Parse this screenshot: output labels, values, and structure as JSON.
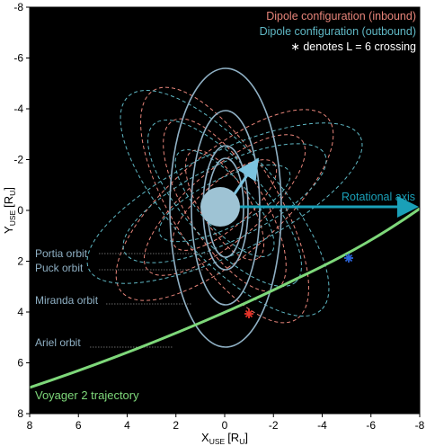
{
  "axes": {
    "x_label_main": "X",
    "x_label_sub": "USE",
    "x_label_unit": "[R",
    "x_label_unit_sub": "U",
    "x_label_close": "]",
    "y_label_main": "Y",
    "y_label_sub": "USE",
    "y_label_unit": "[R",
    "y_label_unit_sub": "U",
    "y_label_close": "]",
    "x_ticks": [
      "8",
      "6",
      "4",
      "2",
      "0",
      "-2",
      "-4",
      "-6",
      "-8"
    ],
    "y_ticks": [
      "-8",
      "-6",
      "-4",
      "-2",
      "0",
      "2",
      "4",
      "6",
      "8"
    ]
  },
  "legend": {
    "inbound": "Dipole configuration (inbound)",
    "outbound": "Dipole configuration (outbound)",
    "crossing": "∗ denotes L = 6 crossing"
  },
  "labels": {
    "rotational_axis": "Rotational axis",
    "portia": "Portia orbit",
    "puck": "Puck orbit",
    "miranda": "Miranda orbit",
    "ariel": "Ariel orbit",
    "voyager": "Voyager 2 trajectory"
  },
  "colors": {
    "background": "#000000",
    "inbound": "#e8857a",
    "outbound": "#5fb7c4",
    "orbit": "#8fb0c4",
    "planet": "#9ec3d4",
    "trajectory": "#7ed87a",
    "rot_axis": "#1aa0b8",
    "crossing_in": "#e6342a",
    "crossing_out": "#2a62d6"
  }
}
